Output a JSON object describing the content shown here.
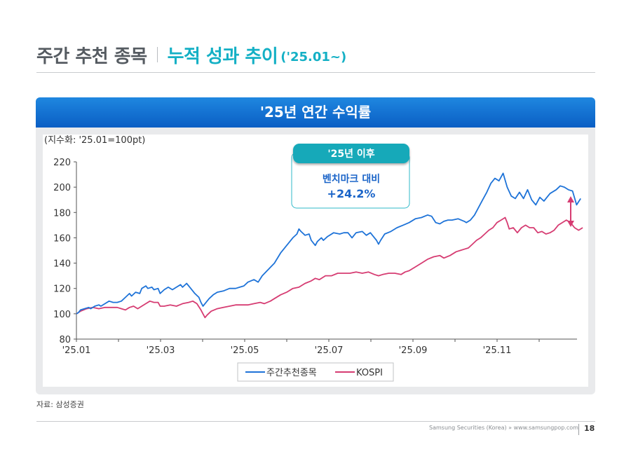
{
  "header": {
    "title_main": "주간 추천 종목",
    "title_sub": "누적 성과 추이",
    "title_period": "('25.01~)"
  },
  "panel": {
    "title": "'25년 연간 수익률"
  },
  "callout": {
    "badge": "'25년 이후",
    "line1": "벤치마크 대비",
    "line2": "+24.2%"
  },
  "source": "자료: 삼성증권",
  "footer": {
    "text": "Samsung Securities (Korea) » www.samsungpop.com",
    "page": "18"
  },
  "colors": {
    "accent_teal": "#14b0c5",
    "header_blue": "#0a5ec4",
    "series_blue": "#1e73d8",
    "series_pink": "#d63c72",
    "arrow": "#d63c72"
  },
  "chart_data": {
    "type": "line",
    "unit_label": "(지수화: '25.01=100pt)",
    "x_ticks": [
      "'25.01",
      "'25.03",
      "'25.05",
      "'25.07",
      "'25.09",
      "'25.11"
    ],
    "x_tick_months": [
      0,
      2,
      4,
      6,
      8,
      10
    ],
    "x_range_months": [
      0,
      11.9
    ],
    "ylim": [
      80,
      220
    ],
    "y_ticks": [
      80,
      100,
      120,
      140,
      160,
      180,
      200,
      220
    ],
    "legend_position": "bottom-center",
    "grid": false,
    "series": [
      {
        "name": "주간추천종목",
        "color": "#1e73d8",
        "points": [
          [
            0.0,
            100
          ],
          [
            0.05,
            101
          ],
          [
            0.1,
            103
          ],
          [
            0.2,
            104
          ],
          [
            0.3,
            105
          ],
          [
            0.35,
            104
          ],
          [
            0.45,
            106
          ],
          [
            0.55,
            107
          ],
          [
            0.6,
            106
          ],
          [
            0.7,
            108
          ],
          [
            0.8,
            110
          ],
          [
            0.9,
            109
          ],
          [
            1.0,
            109
          ],
          [
            1.1,
            110
          ],
          [
            1.2,
            113
          ],
          [
            1.3,
            116
          ],
          [
            1.35,
            114
          ],
          [
            1.45,
            117
          ],
          [
            1.55,
            116
          ],
          [
            1.6,
            120
          ],
          [
            1.7,
            122
          ],
          [
            1.75,
            120
          ],
          [
            1.85,
            121
          ],
          [
            1.9,
            119
          ],
          [
            2.0,
            120
          ],
          [
            2.05,
            116
          ],
          [
            2.15,
            119
          ],
          [
            2.25,
            121
          ],
          [
            2.35,
            119
          ],
          [
            2.45,
            121
          ],
          [
            2.55,
            123
          ],
          [
            2.6,
            121
          ],
          [
            2.7,
            124
          ],
          [
            2.8,
            120
          ],
          [
            2.9,
            116
          ],
          [
            3.0,
            113
          ],
          [
            3.05,
            109
          ],
          [
            3.1,
            106
          ],
          [
            3.15,
            108
          ],
          [
            3.25,
            112
          ],
          [
            3.35,
            115
          ],
          [
            3.45,
            117
          ],
          [
            3.6,
            118
          ],
          [
            3.75,
            120
          ],
          [
            3.9,
            120
          ],
          [
            4.0,
            121
          ],
          [
            4.1,
            122
          ],
          [
            4.2,
            125
          ],
          [
            4.35,
            127
          ],
          [
            4.45,
            125
          ],
          [
            4.55,
            130
          ],
          [
            4.7,
            135
          ],
          [
            4.85,
            140
          ],
          [
            5.0,
            148
          ],
          [
            5.15,
            154
          ],
          [
            5.3,
            160
          ],
          [
            5.4,
            163
          ],
          [
            5.45,
            167
          ],
          [
            5.5,
            165
          ],
          [
            5.6,
            162
          ],
          [
            5.7,
            163
          ],
          [
            5.75,
            158
          ],
          [
            5.85,
            154
          ],
          [
            5.9,
            157
          ],
          [
            6.0,
            160
          ],
          [
            6.05,
            158
          ],
          [
            6.15,
            161
          ],
          [
            6.3,
            164
          ],
          [
            6.45,
            163
          ],
          [
            6.55,
            164
          ],
          [
            6.65,
            164
          ],
          [
            6.75,
            160
          ],
          [
            6.85,
            164
          ],
          [
            7.0,
            165
          ],
          [
            7.1,
            162
          ],
          [
            7.2,
            164
          ],
          [
            7.3,
            160
          ],
          [
            7.35,
            158
          ],
          [
            7.4,
            155
          ],
          [
            7.45,
            158
          ],
          [
            7.55,
            163
          ],
          [
            7.7,
            165
          ],
          [
            7.85,
            168
          ],
          [
            8.0,
            170
          ],
          [
            8.15,
            172
          ],
          [
            8.3,
            175
          ],
          [
            8.45,
            176
          ],
          [
            8.6,
            178
          ],
          [
            8.7,
            177
          ],
          [
            8.8,
            172
          ],
          [
            8.9,
            171
          ],
          [
            9.0,
            173
          ],
          [
            9.1,
            174
          ],
          [
            9.2,
            174
          ],
          [
            9.35,
            175
          ],
          [
            9.5,
            173
          ],
          [
            9.55,
            172
          ],
          [
            9.65,
            174
          ],
          [
            9.75,
            178
          ],
          [
            9.85,
            184
          ],
          [
            9.95,
            190
          ],
          [
            10.05,
            196
          ],
          [
            10.15,
            203
          ],
          [
            10.25,
            207
          ],
          [
            10.35,
            205
          ],
          [
            10.45,
            211
          ],
          [
            10.55,
            200
          ],
          [
            10.65,
            193
          ],
          [
            10.75,
            191
          ],
          [
            10.85,
            196
          ],
          [
            10.95,
            191
          ],
          [
            11.05,
            198
          ],
          [
            11.15,
            190
          ],
          [
            11.25,
            186
          ],
          [
            11.35,
            192
          ],
          [
            11.45,
            189
          ],
          [
            11.6,
            195
          ],
          [
            11.75,
            198
          ],
          [
            11.85,
            201
          ],
          [
            11.95,
            200
          ],
          [
            12.05,
            198
          ],
          [
            12.15,
            197
          ],
          [
            12.25,
            186
          ],
          [
            12.35,
            191
          ]
        ]
      },
      {
        "name": "KOSPI",
        "color": "#d63c72",
        "points": [
          [
            0.0,
            100
          ],
          [
            0.1,
            102
          ],
          [
            0.25,
            104
          ],
          [
            0.4,
            105
          ],
          [
            0.55,
            104
          ],
          [
            0.7,
            105
          ],
          [
            0.85,
            105
          ],
          [
            1.0,
            105
          ],
          [
            1.1,
            104
          ],
          [
            1.2,
            103
          ],
          [
            1.3,
            105
          ],
          [
            1.4,
            106
          ],
          [
            1.5,
            104
          ],
          [
            1.6,
            106
          ],
          [
            1.7,
            108
          ],
          [
            1.8,
            110
          ],
          [
            1.9,
            109
          ],
          [
            2.0,
            109
          ],
          [
            2.05,
            106
          ],
          [
            2.15,
            106
          ],
          [
            2.3,
            107
          ],
          [
            2.45,
            106
          ],
          [
            2.6,
            108
          ],
          [
            2.75,
            109
          ],
          [
            2.85,
            110
          ],
          [
            2.95,
            108
          ],
          [
            3.05,
            103
          ],
          [
            3.1,
            100
          ],
          [
            3.15,
            97
          ],
          [
            3.2,
            99
          ],
          [
            3.3,
            102
          ],
          [
            3.45,
            104
          ],
          [
            3.6,
            105
          ],
          [
            3.75,
            106
          ],
          [
            3.9,
            107
          ],
          [
            4.05,
            107
          ],
          [
            4.2,
            107
          ],
          [
            4.35,
            108
          ],
          [
            4.5,
            109
          ],
          [
            4.6,
            108
          ],
          [
            4.75,
            110
          ],
          [
            4.85,
            112
          ],
          [
            5.0,
            115
          ],
          [
            5.15,
            117
          ],
          [
            5.3,
            120
          ],
          [
            5.45,
            121
          ],
          [
            5.6,
            124
          ],
          [
            5.75,
            126
          ],
          [
            5.85,
            128
          ],
          [
            5.95,
            127
          ],
          [
            6.1,
            130
          ],
          [
            6.25,
            130
          ],
          [
            6.4,
            132
          ],
          [
            6.55,
            132
          ],
          [
            6.7,
            132
          ],
          [
            6.85,
            133
          ],
          [
            7.0,
            132
          ],
          [
            7.15,
            133
          ],
          [
            7.3,
            131
          ],
          [
            7.4,
            130
          ],
          [
            7.5,
            131
          ],
          [
            7.65,
            132
          ],
          [
            7.8,
            132
          ],
          [
            7.95,
            131
          ],
          [
            8.05,
            133
          ],
          [
            8.15,
            134
          ],
          [
            8.3,
            137
          ],
          [
            8.45,
            140
          ],
          [
            8.6,
            143
          ],
          [
            8.75,
            145
          ],
          [
            8.9,
            146
          ],
          [
            9.0,
            144
          ],
          [
            9.15,
            146
          ],
          [
            9.3,
            149
          ],
          [
            9.4,
            150
          ],
          [
            9.5,
            151
          ],
          [
            9.6,
            152
          ],
          [
            9.7,
            155
          ],
          [
            9.8,
            158
          ],
          [
            9.9,
            160
          ],
          [
            10.0,
            163
          ],
          [
            10.1,
            166
          ],
          [
            10.2,
            168
          ],
          [
            10.3,
            172
          ],
          [
            10.4,
            174
          ],
          [
            10.5,
            176
          ],
          [
            10.55,
            172
          ],
          [
            10.6,
            167
          ],
          [
            10.7,
            168
          ],
          [
            10.8,
            164
          ],
          [
            10.9,
            168
          ],
          [
            11.0,
            170
          ],
          [
            11.1,
            168
          ],
          [
            11.2,
            168
          ],
          [
            11.3,
            164
          ],
          [
            11.4,
            165
          ],
          [
            11.5,
            163
          ],
          [
            11.6,
            164
          ],
          [
            11.7,
            166
          ],
          [
            11.8,
            170
          ],
          [
            11.9,
            172
          ],
          [
            12.0,
            174
          ],
          [
            12.1,
            172
          ],
          [
            12.2,
            168
          ],
          [
            12.3,
            166
          ],
          [
            12.4,
            168
          ]
        ]
      }
    ]
  }
}
